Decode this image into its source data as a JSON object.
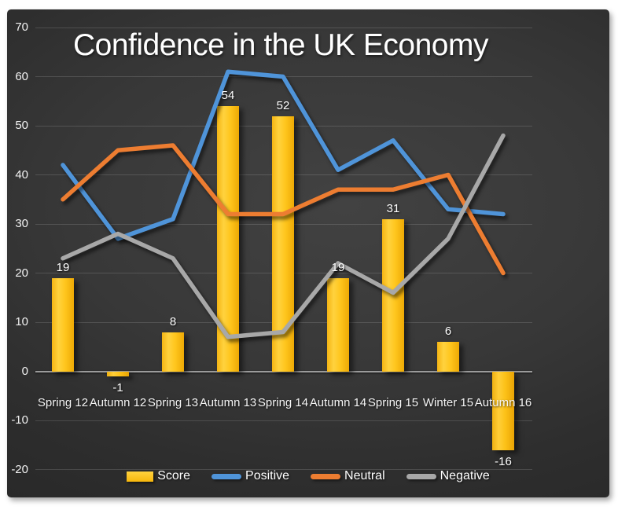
{
  "title": "Confidence in the UK Economy",
  "chart_data": {
    "type": "combo",
    "title": "Confidence in the UK Economy",
    "categories": [
      "Spring 12",
      "Autumn 12",
      "Spring 13",
      "Autumn 13",
      "Spring 14",
      "Autumn 14",
      "Spring 15",
      "Winter 15",
      "Autumn 16"
    ],
    "series": [
      {
        "name": "Score",
        "type": "bar",
        "color": "#ffc408",
        "values": [
          19,
          -1,
          8,
          54,
          52,
          19,
          31,
          6,
          -16
        ],
        "data_labels": [
          "19",
          "-1",
          "8",
          "54",
          "52",
          "19",
          "31",
          "6",
          "-16"
        ]
      },
      {
        "name": "Positive",
        "type": "line",
        "color": "#4f94d9",
        "values": [
          42,
          27,
          31,
          61,
          60,
          41,
          47,
          33,
          32
        ]
      },
      {
        "name": "Neutral",
        "type": "line",
        "color": "#ed7d31",
        "values": [
          35,
          45,
          46,
          32,
          32,
          37,
          37,
          40,
          20
        ]
      },
      {
        "name": "Negative",
        "type": "line",
        "color": "#a8a8a8",
        "values": [
          23,
          28,
          23,
          7,
          8,
          22,
          16,
          27,
          48
        ]
      }
    ],
    "y_axis": {
      "min": -20,
      "max": 70,
      "step": 10,
      "ticks": [
        70,
        60,
        50,
        40,
        30,
        20,
        10,
        0,
        -10,
        -20
      ]
    },
    "x_axis": {
      "label_row_below_zero": true
    },
    "legend": {
      "position": "bottom",
      "entries": [
        "Score",
        "Positive",
        "Neutral",
        "Negative"
      ]
    },
    "grid": true,
    "background": "dark-gradient"
  },
  "colors": {
    "panel_background_center": "#424242",
    "panel_background_edge": "#242424",
    "gridline": "rgba(255,255,255,0.14)",
    "zero_line": "#9b9b9b",
    "text": "#ffffff",
    "score_bar": "#ffc408",
    "positive_line": "#4f94d9",
    "neutral_line": "#ed7d31",
    "negative_line": "#a8a8a8"
  }
}
